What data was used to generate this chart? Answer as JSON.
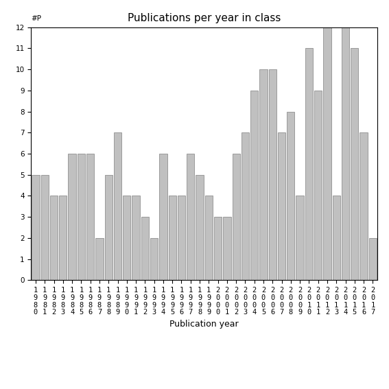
{
  "title": "Publications per year in class",
  "ylabel": "#P",
  "xlabel": "Publication year",
  "years": [
    1980,
    1981,
    1982,
    1983,
    1984,
    1985,
    1986,
    1987,
    1988,
    1989,
    1990,
    1991,
    1992,
    1993,
    1994,
    1995,
    1996,
    1997,
    1998,
    1999,
    2000,
    2001,
    2002,
    2003,
    2004,
    2005,
    2006,
    2007,
    2008,
    2009,
    2010,
    2011,
    2012,
    2013,
    2014,
    2015,
    2016,
    2017
  ],
  "values": [
    5,
    5,
    4,
    4,
    6,
    6,
    6,
    2,
    5,
    7,
    4,
    4,
    3,
    2,
    6,
    4,
    4,
    6,
    5,
    4,
    3,
    3,
    6,
    7,
    9,
    10,
    10,
    7,
    8,
    4,
    11,
    9,
    12,
    4,
    12,
    11,
    7,
    2
  ],
  "bar_color": "#c0c0c0",
  "bar_edgecolor": "#808080",
  "ylim": [
    0,
    12
  ],
  "yticks": [
    0,
    1,
    2,
    3,
    4,
    5,
    6,
    7,
    8,
    9,
    10,
    11,
    12
  ],
  "figsize": [
    5.67,
    5.67
  ],
  "dpi": 100,
  "title_fontsize": 11,
  "axis_label_fontsize": 9,
  "tick_fontsize": 7.5,
  "bar_width": 0.85
}
